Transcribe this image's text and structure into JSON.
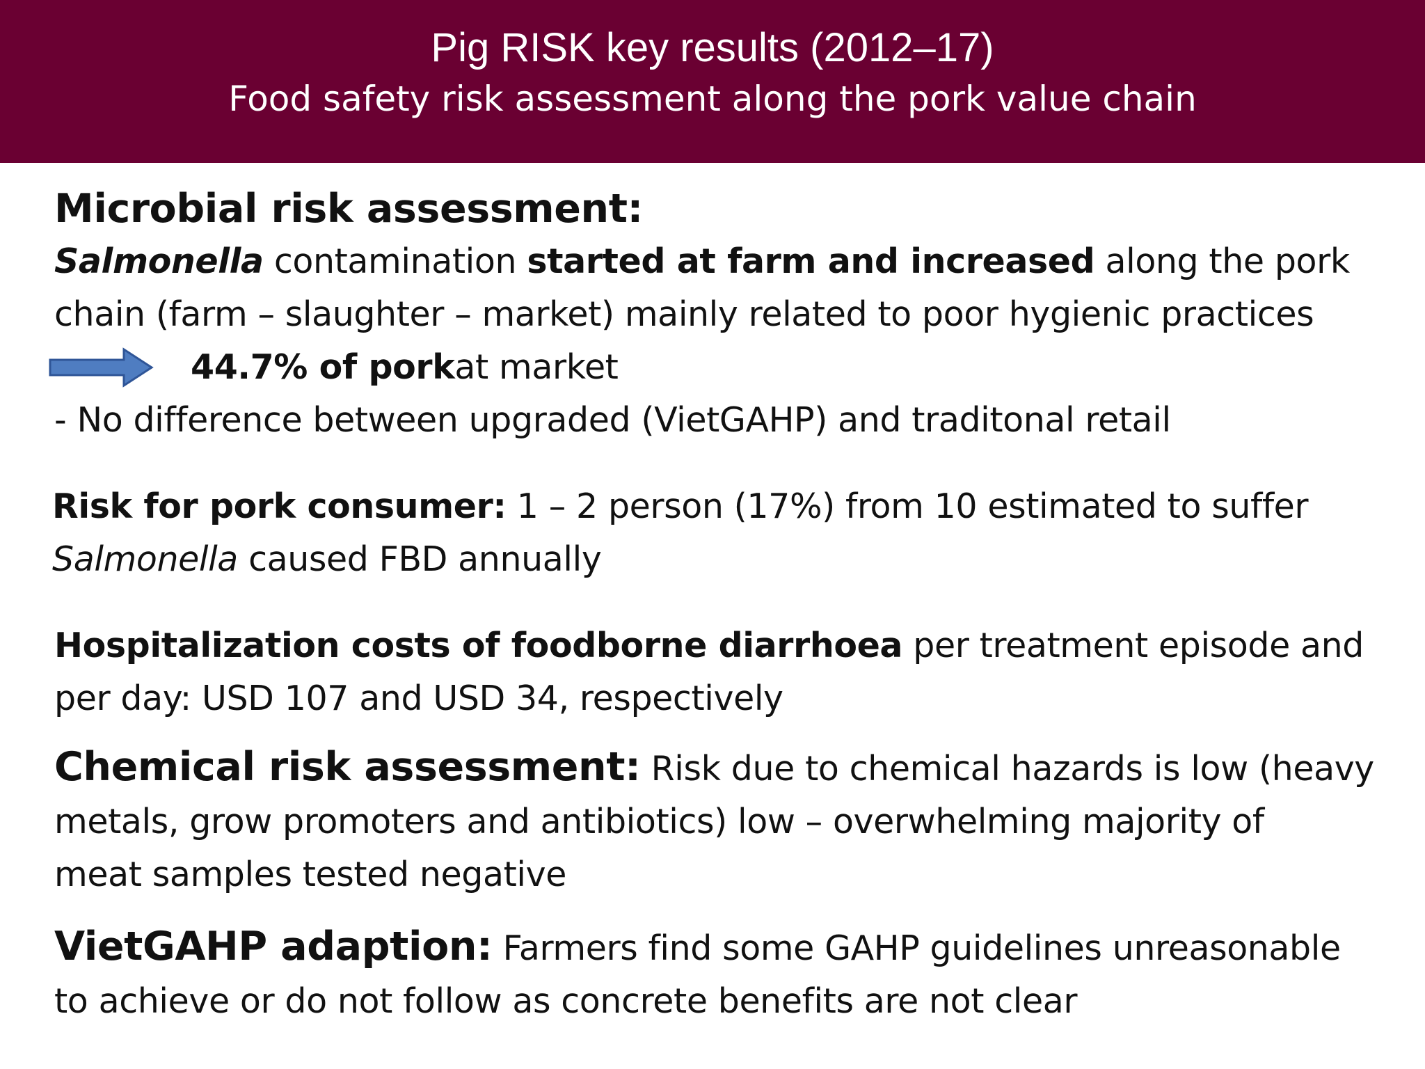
{
  "header": {
    "title": "Pig RISK key results (2012–17)",
    "subtitle": "Food safety risk assessment along the pork value chain"
  },
  "microbial": {
    "heading": "Microbial risk assessment:",
    "line1_italic": "Salmonella",
    "line1_a": " contamination ",
    "line1_bold": "started at farm and increased",
    "line1_b": " along the pork",
    "line2": "chain (farm – slaughter – market) mainly related to poor hygienic practices",
    "arrow_icon": "right-arrow-icon",
    "arrow_bold": "44.7% of pork",
    "arrow_text": " at market",
    "note": "- No difference between upgraded (VietGAHP) and traditonal retail"
  },
  "consumer": {
    "heading": "Risk for pork consumer:",
    "text1": "  1 – 2 person (17%) from 10 estimated to suffer",
    "italic": "Salmonella",
    "text2": " caused FBD annually"
  },
  "hospital": {
    "heading": "Hospitalization costs of foodborne diarrhoea",
    "text1": " per treatment episode and",
    "text2": "per day: USD 107 and USD 34, respectively"
  },
  "chemical": {
    "heading": "Chemical risk assessment:",
    "text1": " Risk due to chemical hazards is low (heavy",
    "text2": "metals, grow promoters and antibiotics) low – overwhelming majority of",
    "text3": "meat samples tested negative"
  },
  "vietgahp": {
    "heading": "VietGAHP adaption:",
    "text1": " Farmers find some GAHP guidelines unreasonable",
    "text2": "to achieve or do not follow as concrete benefits are not clear"
  },
  "colors": {
    "header_bg": "#6a0032",
    "arrow_fill": "#4f7dc1",
    "arrow_stroke": "#2f5597"
  }
}
